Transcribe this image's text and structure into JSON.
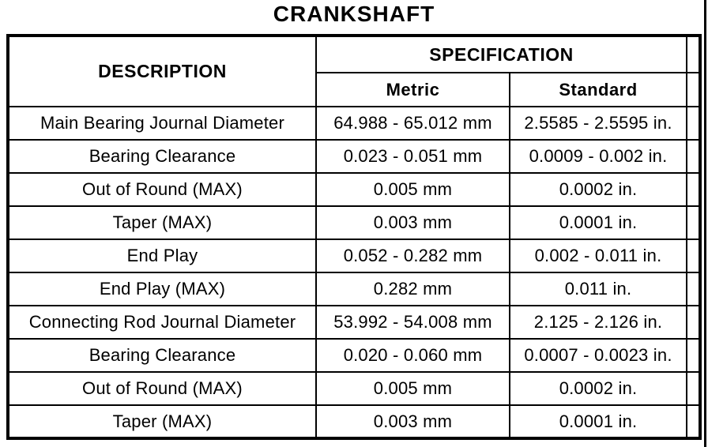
{
  "title": "CRANKSHAFT",
  "table": {
    "headers": {
      "description": "DESCRIPTION",
      "specification": "SPECIFICATION",
      "metric": "Metric",
      "standard": "Standard"
    },
    "rows": [
      {
        "description": "Main Bearing Journal Diameter",
        "metric": "64.988 - 65.012 mm",
        "standard": "2.5585 - 2.5595 in."
      },
      {
        "description": "Bearing Clearance",
        "metric": "0.023 - 0.051 mm",
        "standard": "0.0009 - 0.002 in."
      },
      {
        "description": "Out of Round (MAX)",
        "metric": "0.005 mm",
        "standard": "0.0002 in."
      },
      {
        "description": "Taper (MAX)",
        "metric": "0.003 mm",
        "standard": "0.0001 in."
      },
      {
        "description": "End Play",
        "metric": "0.052 - 0.282 mm",
        "standard": "0.002 - 0.011 in."
      },
      {
        "description": "End Play (MAX)",
        "metric": "0.282 mm",
        "standard": "0.011 in."
      },
      {
        "description": "Connecting Rod Journal Diameter",
        "metric": "53.992 - 54.008 mm",
        "standard": "2.125 - 2.126 in."
      },
      {
        "description": "Bearing Clearance",
        "metric": "0.020 - 0.060 mm",
        "standard": "0.0007 - 0.0023 in."
      },
      {
        "description": "Out of Round (MAX)",
        "metric": "0.005 mm",
        "standard": "0.0002 in."
      },
      {
        "description": "Taper (MAX)",
        "metric": "0.003 mm",
        "standard": "0.0001 in."
      }
    ]
  },
  "colors": {
    "ink": "#000000",
    "paper": "#ffffff"
  }
}
